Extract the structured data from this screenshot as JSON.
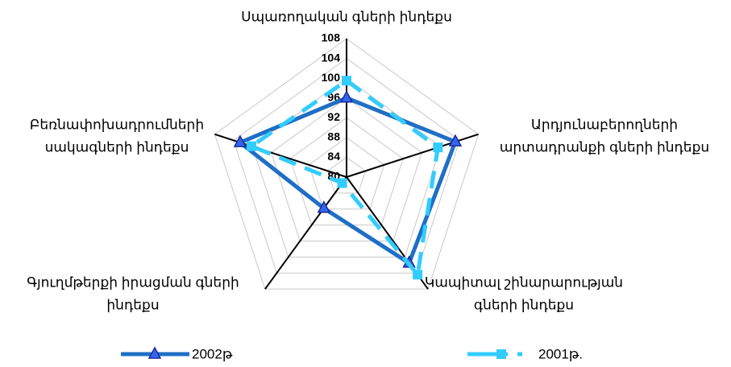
{
  "chart_data": {
    "type": "radar",
    "categories": [
      [
        "Սպառողական գների ինդեքս"
      ],
      [
        "Արդյունաբերողների",
        "արտադրանքի գների ինդեքս"
      ],
      [
        "Կապիտալ շինարարության",
        "գների ինդեքս"
      ],
      [
        "Գյուղմթերքի իրացման գների",
        "ինդեքս"
      ],
      [
        "Բեռնափոխադրումների",
        "սակագների ինդեքս"
      ]
    ],
    "series": [
      {
        "name": "2002թ",
        "color": "#1f6fc5",
        "values": [
          96,
          103.1,
          101.5,
          87.8,
          102.6
        ]
      },
      {
        "name": "2001թ.",
        "color": "#33ccff",
        "values": [
          99.5,
          99.4,
          104.4,
          81.5,
          100.2
        ]
      }
    ],
    "ylim": [
      80,
      108
    ],
    "yticks": [
      80,
      84,
      88,
      92,
      96,
      100,
      104,
      108
    ],
    "grid": true,
    "legend": "bottom"
  }
}
